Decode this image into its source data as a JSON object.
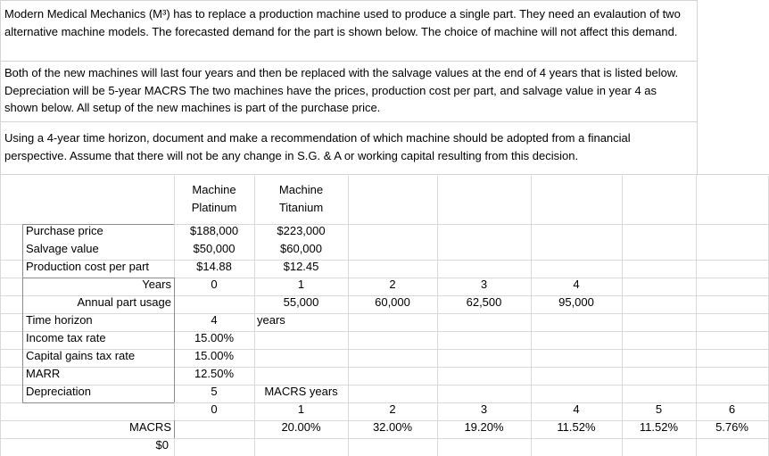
{
  "intro": {
    "p1": "Modern Medical Mechanics (M³) has to replace a production machine used to produce a single part. They need an evalaution of two alternative machine models.  The forecasted demand for the part is shown below. The choice of machine will not affect this demand.",
    "p2": "Both of the new machines will last four years and then be replaced with the salvage values at the end of 4 years that is listed below.  Depreciation will be 5-year MACRS The two machines have the prices, production cost per part, and salvage value in year 4 as shown below.  All setup of the new machines is part of the purchase price.",
    "p3": "Using a 4-year time horizon, document and make a recommendation of which machine should be adopted from a financial perspective.  Assume that there will not  be any change in S.G. & A or working capital resulting from this decision."
  },
  "table": {
    "headers": {
      "platinum_1": "Machine",
      "platinum_2": "Platinum",
      "titanium_1": "Machine",
      "titanium_2": "Titanium"
    },
    "purchase_price": {
      "label": "Purchase price",
      "platinum": "$188,000",
      "titanium": "$223,000"
    },
    "salvage_value": {
      "label": "Salvage value",
      "platinum": "$50,000",
      "titanium": "$60,000"
    },
    "production_cost": {
      "label": "Production cost per part",
      "platinum": "$14.88",
      "titanium": "$12.45"
    },
    "years": {
      "label": "Years",
      "values": [
        "0",
        "1",
        "2",
        "3",
        "4"
      ]
    },
    "annual_usage": {
      "label": "Annual part usage",
      "values": [
        "55,000",
        "60,000",
        "62,500",
        "95,000"
      ]
    },
    "time_horizon": {
      "label": "Time horizon",
      "value": "4",
      "unit": "years"
    },
    "income_tax": {
      "label": "Income tax rate",
      "value": "15.00%"
    },
    "capital_gains": {
      "label": "Capital gains tax rate",
      "value": "15.00%"
    },
    "marr": {
      "label": "MARR",
      "value": "12.50%"
    },
    "depreciation": {
      "label": "Depreciation",
      "value": "5",
      "note": "MACRS years"
    },
    "macrs_years": [
      "0",
      "1",
      "2",
      "3",
      "4",
      "5",
      "6"
    ],
    "macrs": {
      "label": "MACRS",
      "values": [
        "20.00%",
        "32.00%",
        "19.20%",
        "11.52%",
        "11.52%",
        "5.76%"
      ]
    },
    "bottom_value": "$0"
  }
}
